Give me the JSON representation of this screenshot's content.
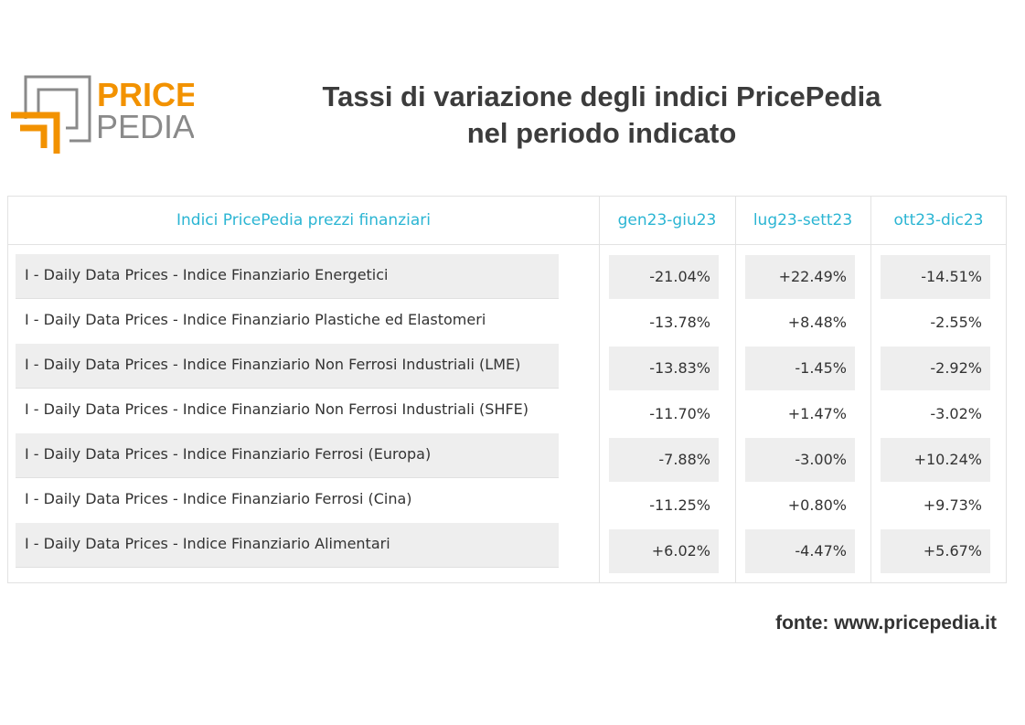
{
  "brand": {
    "line1": "PRICE",
    "line2": "PEDIA",
    "accent_color": "#f29200",
    "gray_color": "#8a8a8a"
  },
  "title": {
    "line1": "Tassi di variazione degli indici PricePedia",
    "line2": "nel periodo indicato"
  },
  "table": {
    "headers": [
      "Indici PricePedia prezzi finanziari",
      "gen23-giu23",
      "lug23-sett23",
      "ott23-dic23"
    ],
    "header_color": "#2bb5d3",
    "rows": [
      {
        "label": "I - Daily Data Prices - Indice Finanziario Energetici",
        "values": [
          "-21.04%",
          "+22.49%",
          "-14.51%"
        ]
      },
      {
        "label": "I - Daily Data Prices - Indice Finanziario Plastiche ed Elastomeri",
        "values": [
          "-13.78%",
          "+8.48%",
          "-2.55%"
        ]
      },
      {
        "label": "I - Daily Data Prices - Indice Finanziario Non Ferrosi Industriali (LME)",
        "values": [
          "-13.83%",
          "-1.45%",
          "-2.92%"
        ]
      },
      {
        "label": "I - Daily Data Prices - Indice Finanziario Non Ferrosi Industriali (SHFE)",
        "values": [
          "-11.70%",
          "+1.47%",
          "-3.02%"
        ]
      },
      {
        "label": "I - Daily Data Prices - Indice Finanziario Ferrosi (Europa)",
        "values": [
          "-7.88%",
          "-3.00%",
          "+10.24%"
        ]
      },
      {
        "label": "I - Daily Data Prices - Indice Finanziario Ferrosi (Cina)",
        "values": [
          "-11.25%",
          "+0.80%",
          "+9.73%"
        ]
      },
      {
        "label": "I - Daily Data Prices - Indice Finanziario Alimentari",
        "values": [
          "+6.02%",
          "-4.47%",
          "+5.67%"
        ]
      }
    ]
  },
  "source": "fonte: www.pricepedia.it"
}
